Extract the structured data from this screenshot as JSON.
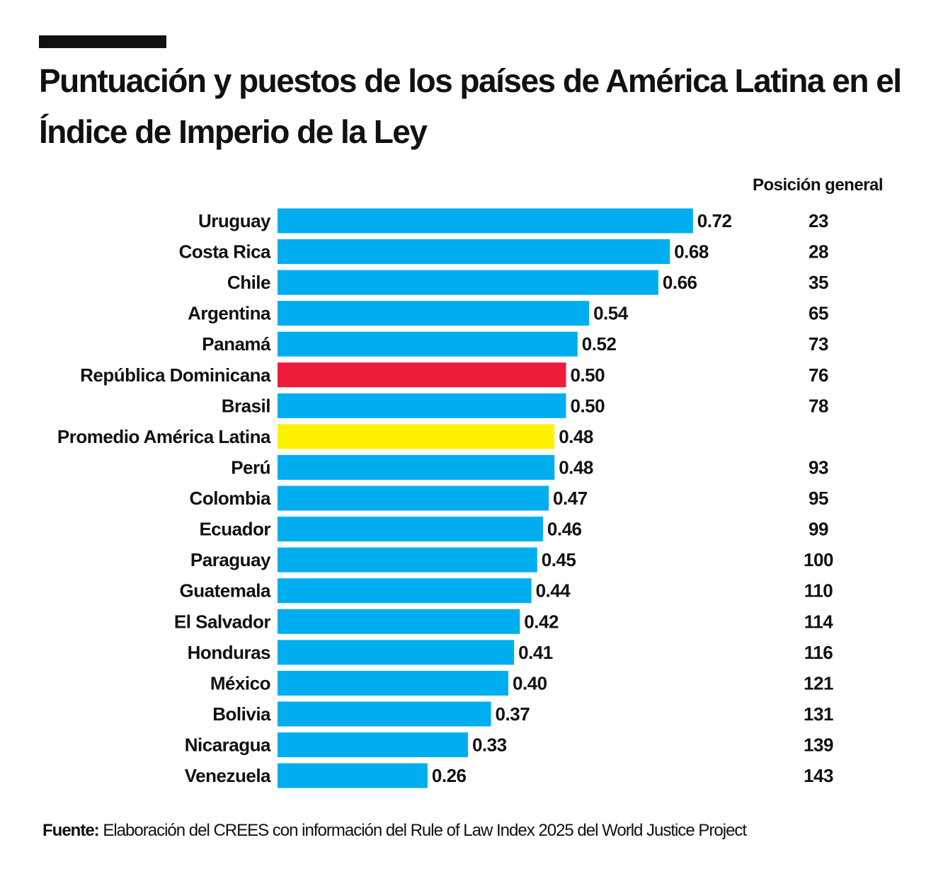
{
  "chart_data": {
    "type": "bar",
    "orientation": "horizontal",
    "title": "Puntuación y puestos de los países de América Latina en el Índice de Imperio de la Ley",
    "xlim": [
      0,
      0.8
    ],
    "grid": false,
    "rank_header": "Posición general",
    "categories": [
      "Uruguay",
      "Costa Rica",
      "Chile",
      "Argentina",
      "Panamá",
      "República Dominicana",
      "Brasil",
      "Promedio América Latina",
      "Perú",
      "Colombia",
      "Ecuador",
      "Paraguay",
      "Guatemala",
      "El Salvador",
      "Honduras",
      "México",
      "Bolivia",
      "Nicaragua",
      "Venezuela"
    ],
    "values": [
      0.72,
      0.68,
      0.66,
      0.54,
      0.52,
      0.5,
      0.5,
      0.48,
      0.48,
      0.47,
      0.46,
      0.45,
      0.44,
      0.42,
      0.41,
      0.4,
      0.37,
      0.33,
      0.26
    ],
    "value_labels": [
      "0.72",
      "0.68",
      "0.66",
      "0.54",
      "0.52",
      "0.50",
      "0.50",
      "0.48",
      "0.48",
      "0.47",
      "0.46",
      "0.45",
      "0.44",
      "0.42",
      "0.41",
      "0.40",
      "0.37",
      "0.33",
      "0.26"
    ],
    "ranks": [
      "23",
      "28",
      "35",
      "65",
      "73",
      "76",
      "78",
      "",
      "93",
      "95",
      "99",
      "100",
      "110",
      "114",
      "116",
      "121",
      "131",
      "139",
      "143"
    ],
    "colors": {
      "default": "#00AEEF",
      "highlight": "#ED1C3A",
      "average": "#FFF200"
    },
    "highlight_index": 5,
    "average_index": 7
  },
  "footer": {
    "source_label": "Fuente:",
    "source_text": " Elaboración del CREES con información del Rule of Law Index 2025 del World Justice Project"
  }
}
